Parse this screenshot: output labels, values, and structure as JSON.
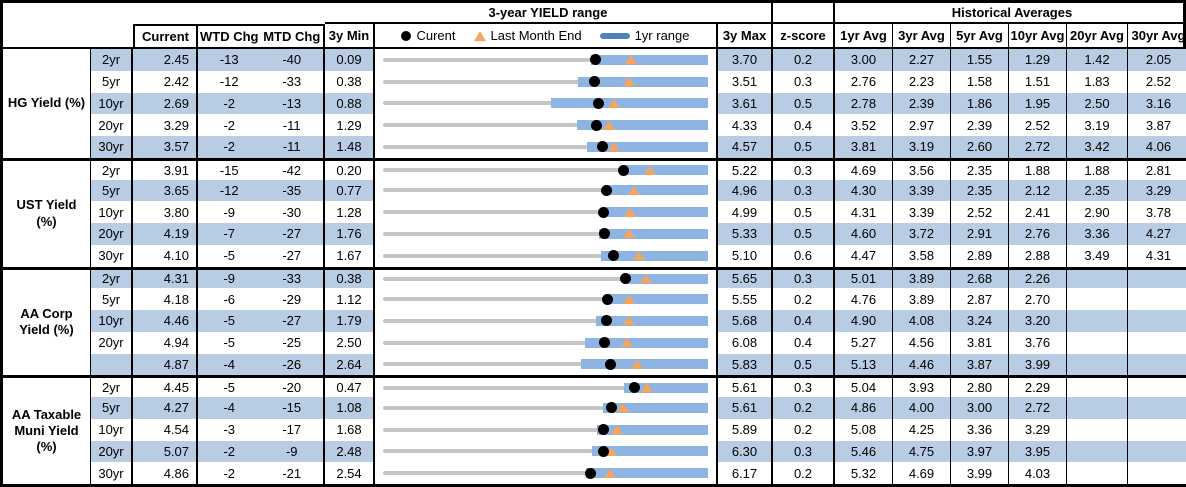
{
  "colors": {
    "stripe": "#b8cce4",
    "bar": "#8eb4e3",
    "legend_bar": "#4f81bd",
    "orange": "#f6a55c",
    "gray": "#c6c6c6",
    "border": "#000000"
  },
  "header": {
    "yield_range_title": "3-year YIELD range",
    "historical_title": "Historical Averages",
    "current": "Current",
    "wtd": "WTD Chg",
    "mtd": "MTD Chg",
    "min": "3y Min",
    "max": "3y Max",
    "zscore": "z-score",
    "avgs": [
      "1yr Avg",
      "3yr Avg",
      "5yr Avg",
      "10yr Avg",
      "20yr Avg",
      "30yr Avg"
    ],
    "legend": {
      "current": "Curent",
      "last_month_end": "Last Month End",
      "range_1yr": "1yr range"
    }
  },
  "chart_data": {
    "type": "table",
    "subtype": "range-bar rows: gray line = 3y min..max, blue bar = 1yr range (high pinned at 3y max), black dot = current, orange triangle = last month end (current - MTD chg bp)",
    "legend_position": "top of chart column",
    "sections": [
      {
        "label": "HG Yield (%)",
        "rows": [
          {
            "tenor": "2yr",
            "current": "2.45",
            "wtd": "-13",
            "mtd": "-40",
            "min": "0.09",
            "max": "3.70",
            "z": "0.2",
            "avgs": [
              "3.00",
              "2.27",
              "1.55",
              "1.29",
              "1.42",
              "2.05"
            ],
            "lme": 2.85,
            "low1y": 2.4
          },
          {
            "tenor": "5yr",
            "current": "2.42",
            "wtd": "-12",
            "mtd": "-33",
            "min": "0.38",
            "max": "3.51",
            "z": "0.3",
            "avgs": [
              "2.76",
              "2.23",
              "1.58",
              "1.51",
              "1.83",
              "2.52"
            ],
            "lme": 2.75,
            "low1y": 2.26
          },
          {
            "tenor": "10yr",
            "current": "2.69",
            "wtd": "-2",
            "mtd": "-13",
            "min": "0.88",
            "max": "3.61",
            "z": "0.5",
            "avgs": [
              "2.78",
              "2.39",
              "1.86",
              "1.95",
              "2.50",
              "3.16"
            ],
            "lme": 2.82,
            "low1y": 2.29
          },
          {
            "tenor": "20yr",
            "current": "3.29",
            "wtd": "-2",
            "mtd": "-11",
            "min": "1.29",
            "max": "4.33",
            "z": "0.4",
            "avgs": [
              "3.52",
              "2.97",
              "2.39",
              "2.52",
              "3.19",
              "3.87"
            ],
            "lme": 3.4,
            "low1y": 3.1
          },
          {
            "tenor": "30yr",
            "current": "3.57",
            "wtd": "-2",
            "mtd": "-11",
            "min": "1.48",
            "max": "4.57",
            "z": "0.5",
            "avgs": [
              "3.81",
              "3.19",
              "2.60",
              "2.72",
              "3.42",
              "4.06"
            ],
            "lme": 3.68,
            "low1y": 3.42
          }
        ]
      },
      {
        "label": "UST Yield (%)",
        "rows": [
          {
            "tenor": "2yr",
            "current": "3.91",
            "wtd": "-15",
            "mtd": "-42",
            "min": "0.20",
            "max": "5.22",
            "z": "0.3",
            "avgs": [
              "4.69",
              "3.56",
              "2.35",
              "1.88",
              "1.88",
              "2.81"
            ],
            "lme": 4.33,
            "low1y": 3.89
          },
          {
            "tenor": "5yr",
            "current": "3.65",
            "wtd": "-12",
            "mtd": "-35",
            "min": "0.77",
            "max": "4.96",
            "z": "0.3",
            "avgs": [
              "4.30",
              "3.39",
              "2.35",
              "2.12",
              "2.35",
              "3.29"
            ],
            "lme": 4.0,
            "low1y": 3.63
          },
          {
            "tenor": "10yr",
            "current": "3.80",
            "wtd": "-9",
            "mtd": "-30",
            "min": "1.28",
            "max": "4.99",
            "z": "0.5",
            "avgs": [
              "4.31",
              "3.39",
              "2.52",
              "2.41",
              "2.90",
              "3.78"
            ],
            "lme": 4.1,
            "low1y": 3.78
          },
          {
            "tenor": "20yr",
            "current": "4.19",
            "wtd": "-7",
            "mtd": "-27",
            "min": "1.76",
            "max": "5.33",
            "z": "0.5",
            "avgs": [
              "4.60",
              "3.72",
              "2.91",
              "2.76",
              "3.36",
              "4.27"
            ],
            "lme": 4.46,
            "low1y": 4.13
          },
          {
            "tenor": "30yr",
            "current": "4.10",
            "wtd": "-5",
            "mtd": "-27",
            "min": "1.67",
            "max": "5.10",
            "z": "0.6",
            "avgs": [
              "4.47",
              "3.58",
              "2.89",
              "2.88",
              "3.49",
              "4.31"
            ],
            "lme": 4.37,
            "low1y": 3.97
          }
        ]
      },
      {
        "label": "AA Corp Yield (%)",
        "rows": [
          {
            "tenor": "2yr",
            "current": "4.31",
            "wtd": "-9",
            "mtd": "-33",
            "min": "0.38",
            "max": "5.65",
            "z": "0.3",
            "avgs": [
              "5.01",
              "3.89",
              "2.68",
              "2.26",
              "",
              ""
            ],
            "lme": 4.64,
            "low1y": 4.28
          },
          {
            "tenor": "5yr",
            "current": "4.18",
            "wtd": "-6",
            "mtd": "-29",
            "min": "1.12",
            "max": "5.55",
            "z": "0.2",
            "avgs": [
              "4.76",
              "3.89",
              "2.87",
              "2.70",
              "",
              ""
            ],
            "lme": 4.47,
            "low1y": 4.14
          },
          {
            "tenor": "10yr",
            "current": "4.46",
            "wtd": "-5",
            "mtd": "-27",
            "min": "1.79",
            "max": "5.68",
            "z": "0.4",
            "avgs": [
              "4.90",
              "4.08",
              "3.24",
              "3.20",
              "",
              ""
            ],
            "lme": 4.73,
            "low1y": 4.34
          },
          {
            "tenor": "20yr",
            "current": "4.94",
            "wtd": "-5",
            "mtd": "-25",
            "min": "2.50",
            "max": "6.08",
            "z": "0.4",
            "avgs": [
              "5.27",
              "4.56",
              "3.81",
              "3.76",
              "",
              ""
            ],
            "lme": 5.19,
            "low1y": 4.73
          },
          {
            "tenor": "",
            "current": "4.87",
            "wtd": "-4",
            "mtd": "-26",
            "min": "2.64",
            "max": "5.83",
            "z": "0.5",
            "avgs": [
              "5.13",
              "4.46",
              "3.87",
              "3.99",
              "",
              ""
            ],
            "lme": 5.13,
            "low1y": 4.58
          }
        ]
      },
      {
        "label": "AA Taxable Muni Yield (%)",
        "rows": [
          {
            "tenor": "2yr",
            "current": "4.45",
            "wtd": "-5",
            "mtd": "-20",
            "min": "0.47",
            "max": "5.61",
            "z": "0.3",
            "avgs": [
              "5.04",
              "3.93",
              "2.80",
              "2.29",
              "",
              ""
            ],
            "lme": 4.65,
            "low1y": 4.28
          },
          {
            "tenor": "5yr",
            "current": "4.27",
            "wtd": "-4",
            "mtd": "-15",
            "min": "1.08",
            "max": "5.61",
            "z": "0.2",
            "avgs": [
              "4.86",
              "4.00",
              "3.00",
              "2.72",
              "",
              ""
            ],
            "lme": 4.42,
            "low1y": 4.14
          },
          {
            "tenor": "10yr",
            "current": "4.54",
            "wtd": "-3",
            "mtd": "-17",
            "min": "1.68",
            "max": "5.89",
            "z": "0.2",
            "avgs": [
              "5.08",
              "4.25",
              "3.36",
              "3.29",
              "",
              ""
            ],
            "lme": 4.71,
            "low1y": 4.45
          },
          {
            "tenor": "20yr",
            "current": "5.07",
            "wtd": "-2",
            "mtd": "-9",
            "min": "2.48",
            "max": "6.30",
            "z": "0.3",
            "avgs": [
              "5.46",
              "4.75",
              "3.97",
              "3.95",
              "",
              ""
            ],
            "lme": 5.16,
            "low1y": 4.94
          },
          {
            "tenor": "30yr",
            "current": "4.86",
            "wtd": "-2",
            "mtd": "-21",
            "min": "2.54",
            "max": "6.17",
            "z": "0.2",
            "avgs": [
              "5.32",
              "4.69",
              "3.99",
              "4.03",
              "",
              ""
            ],
            "lme": 5.07,
            "low1y": 4.81
          }
        ]
      }
    ]
  }
}
